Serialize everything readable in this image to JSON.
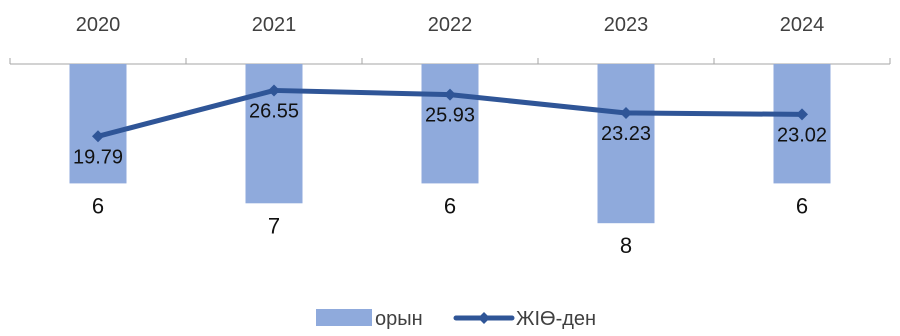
{
  "chart_data": {
    "type": "bar",
    "categories": [
      "2020",
      "2021",
      "2022",
      "2023",
      "2024"
    ],
    "series": [
      {
        "name": "орын",
        "type": "bar",
        "values": [
          6,
          7,
          6,
          8,
          6
        ],
        "color": "#8faadc",
        "axis": "secondary",
        "inverted": true
      },
      {
        "name": "ЖІӨ-ден",
        "type": "line",
        "values": [
          19.79,
          26.55,
          25.93,
          23.23,
          23.02
        ],
        "color": "#2f5597",
        "marker": "diamond",
        "axis": "primary"
      }
    ],
    "title": "",
    "xlabel": "",
    "ylabel": "",
    "x_axis_position": "top",
    "grid": false,
    "legend": "bottom"
  }
}
